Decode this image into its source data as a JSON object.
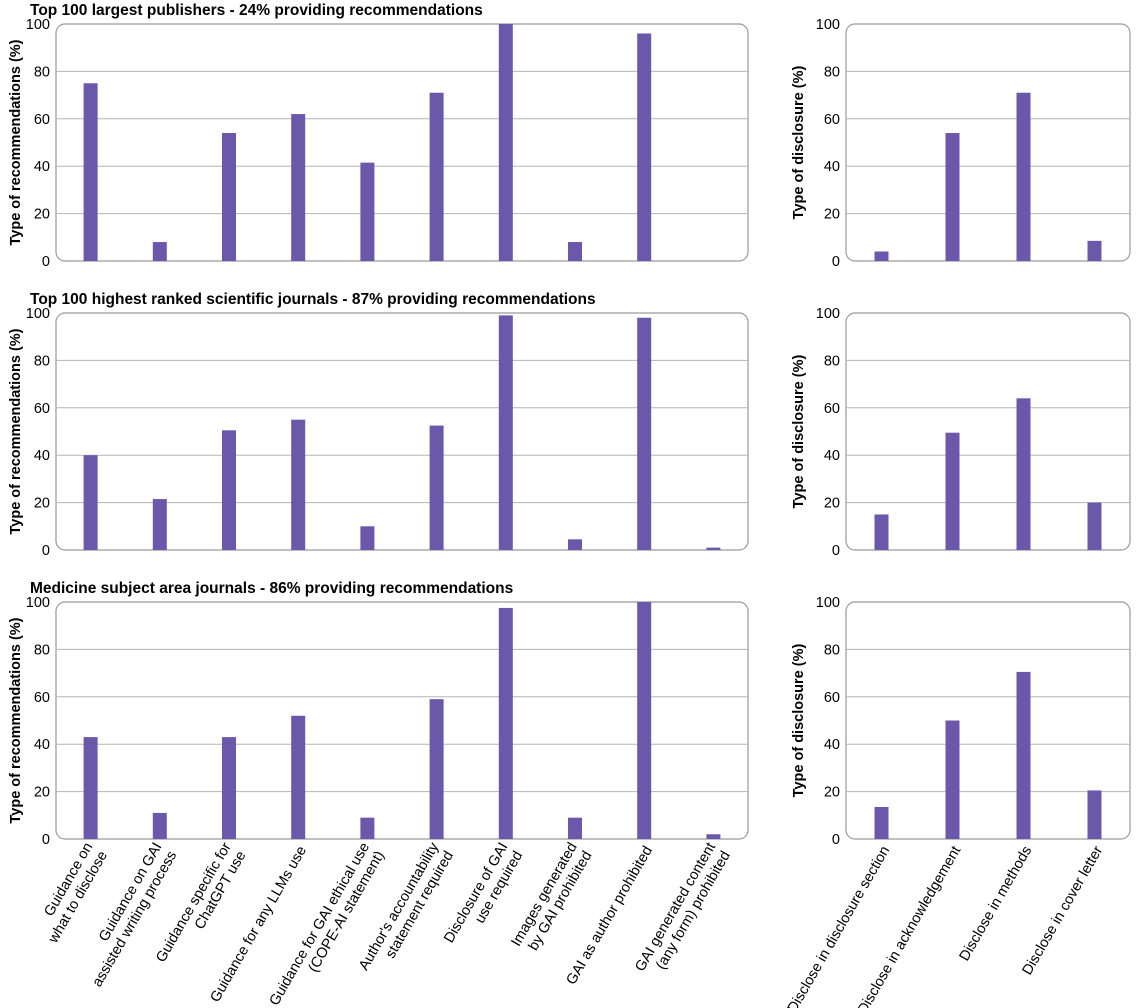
{
  "colors": {
    "bar": "#6b58ab",
    "grid": "#b5b5b5",
    "frame": "#9a9a9a"
  },
  "chart_data": [
    {
      "type": "bar",
      "title": "Top 100 largest publishers - 24% providing recommendations",
      "xlabel": "",
      "ylabel": "Type of recommendations (%)",
      "ylim": [
        0,
        100
      ],
      "yticks": [
        0,
        20,
        40,
        60,
        80,
        100
      ],
      "grid": true,
      "categories": [
        "Guidance on what to disclose",
        "Guidance on GAI assisted writing process",
        "Guidance specific for ChatGPT use",
        "Guidance for any LLMs use",
        "Guidance for GAI ethical use (COPE-AI statement)",
        "Author's accountability statement required",
        "Disclosure of GAI use required",
        "Images generated by GAI prohibited",
        "GAI as author prohibited",
        "GAI generated content (any form) prohibited"
      ],
      "values": [
        75,
        8,
        54,
        62,
        41.5,
        71,
        100,
        8,
        96,
        0
      ]
    },
    {
      "type": "bar",
      "title": "",
      "xlabel": "",
      "ylabel": "Type of disclosure (%)",
      "ylim": [
        0,
        100
      ],
      "yticks": [
        0,
        20,
        40,
        60,
        80,
        100
      ],
      "grid": true,
      "categories": [
        "Disclose in disclosure section",
        "Disclose in acknowledgement",
        "Disclose in methods",
        "Disclose in cover letter"
      ],
      "values": [
        4,
        54,
        71,
        8.5
      ]
    },
    {
      "type": "bar",
      "title": "Top 100 highest ranked scientific journals - 87% providing recommendations",
      "xlabel": "",
      "ylabel": "Type of recommendations (%)",
      "ylim": [
        0,
        100
      ],
      "yticks": [
        0,
        20,
        40,
        60,
        80,
        100
      ],
      "grid": true,
      "categories": [
        "Guidance on what to disclose",
        "Guidance on GAI assisted writing process",
        "Guidance specific for ChatGPT use",
        "Guidance for any LLMs use",
        "Guidance for GAI ethical use (COPE-AI statement)",
        "Author's accountability statement required",
        "Disclosure of GAI use required",
        "Images generated by GAI prohibited",
        "GAI as author prohibited",
        "GAI generated content (any form) prohibited"
      ],
      "values": [
        40,
        21.5,
        50.5,
        55,
        10,
        52.5,
        99,
        4.5,
        98,
        1
      ]
    },
    {
      "type": "bar",
      "title": "",
      "xlabel": "",
      "ylabel": "Type of disclosure (%)",
      "ylim": [
        0,
        100
      ],
      "yticks": [
        0,
        20,
        40,
        60,
        80,
        100
      ],
      "grid": true,
      "categories": [
        "Disclose in disclosure section",
        "Disclose in acknowledgement",
        "Disclose in methods",
        "Disclose in cover letter"
      ],
      "values": [
        15,
        49.5,
        64,
        20
      ]
    },
    {
      "type": "bar",
      "title": "Medicine subject area journals - 86% providing recommendations",
      "xlabel": "",
      "ylabel": "Type of recommendations (%)",
      "ylim": [
        0,
        100
      ],
      "yticks": [
        0,
        20,
        40,
        60,
        80,
        100
      ],
      "grid": true,
      "categories": [
        "Guidance on what to disclose",
        "Guidance on GAI assisted writing process",
        "Guidance specific for ChatGPT use",
        "Guidance for any LLMs use",
        "Guidance for GAI ethical use (COPE-AI statement)",
        "Author's accountability statement required",
        "Disclosure of GAI use required",
        "Images generated by GAI prohibited",
        "GAI as author prohibited",
        "GAI generated content (any form) prohibited"
      ],
      "values": [
        43,
        11,
        43,
        52,
        9,
        59,
        97.5,
        9,
        100,
        2
      ]
    },
    {
      "type": "bar",
      "title": "",
      "xlabel": "",
      "ylabel": "Type of disclosure (%)",
      "ylim": [
        0,
        100
      ],
      "yticks": [
        0,
        20,
        40,
        60,
        80,
        100
      ],
      "grid": true,
      "categories": [
        "Disclose in disclosure section",
        "Disclose in acknowledgement",
        "Disclose in methods",
        "Disclose in cover letter"
      ],
      "values": [
        13.5,
        50,
        70.5,
        20.5
      ]
    }
  ],
  "x_category_labels": {
    "recommendations": [
      [
        "Guidance on",
        "what to disclose"
      ],
      [
        "Guidance on GAI",
        "assisted writing process"
      ],
      [
        "Guidance specific for",
        "ChatGPT use"
      ],
      [
        "Guidance for any LLMs use"
      ],
      [
        "Guidance for GAI ethical use",
        "(COPE-AI statement)"
      ],
      [
        "Author's accountability",
        "statement required"
      ],
      [
        "Disclosure of GAI",
        "use required"
      ],
      [
        "Images generated",
        "by GAI prohibited"
      ],
      [
        "GAI as author prohibited"
      ],
      [
        "GAI generated content",
        "(any form) prohibited"
      ]
    ],
    "disclosure": [
      [
        "Disclose in disclosure section"
      ],
      [
        "Disclose in acknowledgement"
      ],
      [
        "Disclose in methods"
      ],
      [
        "Disclose in cover letter"
      ]
    ]
  }
}
